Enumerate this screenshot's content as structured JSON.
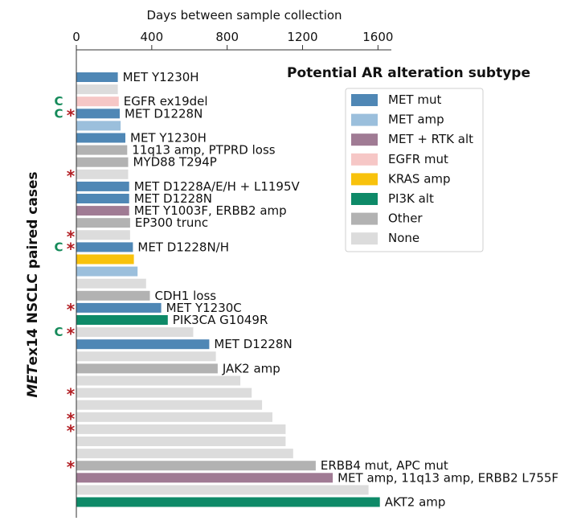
{
  "chart_data": {
    "type": "bar",
    "orientation": "horizontal",
    "xlabel": "Days between sample collection",
    "ylabel_italic": "MET",
    "ylabel_rest": "ex14 NSCLC paired cases",
    "xlim": [
      0,
      1600
    ],
    "xticks": [
      0,
      400,
      800,
      1200,
      1600
    ],
    "legend": {
      "title": "Potential AR alteration subtype",
      "position": "top-right",
      "entries": [
        {
          "key": "met_mut",
          "label": "MET mut",
          "color": "#4f87b5"
        },
        {
          "key": "met_amp",
          "label": "MET amp",
          "color": "#9bbfdc"
        },
        {
          "key": "met_rtk",
          "label": "MET + RTK alt",
          "color": "#a07b94"
        },
        {
          "key": "egfr_mut",
          "label": "EGFR mut",
          "color": "#f6c7c6"
        },
        {
          "key": "kras_amp",
          "label": "KRAS amp",
          "color": "#f8c20c"
        },
        {
          "key": "pi3k_alt",
          "label": "PI3K alt",
          "color": "#0e8a68"
        },
        {
          "key": "other",
          "label": "Other",
          "color": "#b2b2b2"
        },
        {
          "key": "none",
          "label": "None",
          "color": "#dcdcdc"
        }
      ]
    },
    "marker_symbols": {
      "c": "C",
      "star": "*"
    },
    "cases": [
      {
        "days": 220,
        "category": "met_mut",
        "label": "MET Y1230H",
        "c": false,
        "star": false
      },
      {
        "days": 220,
        "category": "none",
        "label": "",
        "c": false,
        "star": false
      },
      {
        "days": 225,
        "category": "egfr_mut",
        "label": "EGFR ex19del",
        "c": true,
        "star": false
      },
      {
        "days": 230,
        "category": "met_mut",
        "label": "MET D1228N",
        "c": true,
        "star": true
      },
      {
        "days": 235,
        "category": "met_amp",
        "label": "",
        "c": false,
        "star": false
      },
      {
        "days": 260,
        "category": "met_mut",
        "label": "MET Y1230H",
        "c": false,
        "star": false
      },
      {
        "days": 270,
        "category": "other",
        "label": "11q13 amp, PTPRD loss",
        "c": false,
        "star": false
      },
      {
        "days": 275,
        "category": "other",
        "label": "MYD88 T294P",
        "c": false,
        "star": false
      },
      {
        "days": 275,
        "category": "none",
        "label": "",
        "c": false,
        "star": true
      },
      {
        "days": 280,
        "category": "met_mut",
        "label": "MET D1228A/E/H + L1195V",
        "c": false,
        "star": false
      },
      {
        "days": 280,
        "category": "met_mut",
        "label": "MET D1228N",
        "c": false,
        "star": false
      },
      {
        "days": 280,
        "category": "met_rtk",
        "label": "MET Y1003F, ERBB2 amp",
        "c": false,
        "star": false
      },
      {
        "days": 285,
        "category": "other",
        "label": "EP300 trunc",
        "c": false,
        "star": false
      },
      {
        "days": 285,
        "category": "none",
        "label": "",
        "c": false,
        "star": true
      },
      {
        "days": 300,
        "category": "met_mut",
        "label": "MET D1228N/H",
        "c": true,
        "star": true
      },
      {
        "days": 305,
        "category": "kras_amp",
        "label": "",
        "c": false,
        "star": false
      },
      {
        "days": 325,
        "category": "met_amp",
        "label": "",
        "c": false,
        "star": false
      },
      {
        "days": 370,
        "category": "none",
        "label": "",
        "c": false,
        "star": false
      },
      {
        "days": 390,
        "category": "other",
        "label": "CDH1 loss",
        "c": false,
        "star": false
      },
      {
        "days": 450,
        "category": "met_mut",
        "label": "MET Y1230C",
        "c": false,
        "star": true
      },
      {
        "days": 485,
        "category": "pi3k_alt",
        "label": "PIK3CA G1049R",
        "c": false,
        "star": false
      },
      {
        "days": 620,
        "category": "none",
        "label": "",
        "c": true,
        "star": true
      },
      {
        "days": 705,
        "category": "met_mut",
        "label": "MET D1228N",
        "c": false,
        "star": false
      },
      {
        "days": 740,
        "category": "none",
        "label": "",
        "c": false,
        "star": false
      },
      {
        "days": 750,
        "category": "other",
        "label": "JAK2 amp",
        "c": false,
        "star": false
      },
      {
        "days": 870,
        "category": "none",
        "label": "",
        "c": false,
        "star": false
      },
      {
        "days": 930,
        "category": "none",
        "label": "",
        "c": false,
        "star": true
      },
      {
        "days": 985,
        "category": "none",
        "label": "",
        "c": false,
        "star": false
      },
      {
        "days": 1040,
        "category": "none",
        "label": "",
        "c": false,
        "star": true
      },
      {
        "days": 1110,
        "category": "none",
        "label": "",
        "c": false,
        "star": true
      },
      {
        "days": 1110,
        "category": "none",
        "label": "",
        "c": false,
        "star": false
      },
      {
        "days": 1150,
        "category": "none",
        "label": "",
        "c": false,
        "star": false
      },
      {
        "days": 1270,
        "category": "other",
        "label": "ERBB4 mut, APC mut",
        "c": false,
        "star": true
      },
      {
        "days": 1360,
        "category": "met_rtk",
        "label": "MET amp, 11q13 amp, ERBB2 L755F",
        "c": false,
        "star": false
      },
      {
        "days": 1550,
        "category": "none",
        "label": "",
        "c": false,
        "star": false
      },
      {
        "days": 1610,
        "category": "pi3k_alt",
        "label": "AKT2 amp",
        "c": false,
        "star": false
      }
    ]
  }
}
